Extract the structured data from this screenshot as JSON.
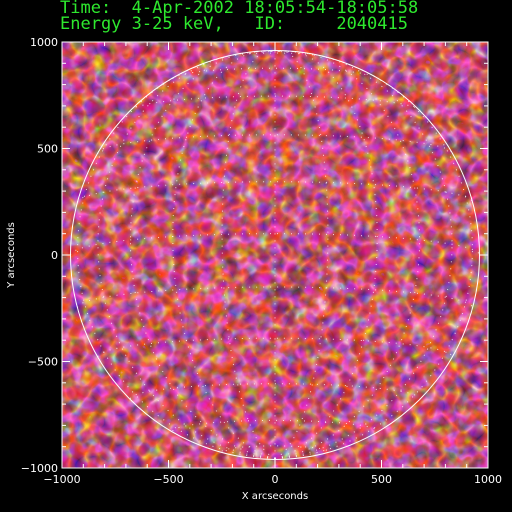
{
  "header": {
    "time_line": "Time:  4-Apr-2002 18:05:54-18:05:58",
    "energy_line": "Energy 3-25 keV,   ID:     2040415"
  },
  "plot": {
    "xlabel": "X arcseconds",
    "ylabel": "Y arcseconds",
    "xlim": [
      -1000,
      1000
    ],
    "ylim": [
      -1000,
      1000
    ],
    "xticks": [
      -1000,
      -500,
      0,
      500,
      1000
    ],
    "yticks": [
      -1000,
      -500,
      0,
      500,
      1000
    ],
    "x_tick_labels": [
      "−1000",
      "−500",
      "0",
      "500",
      "1000"
    ],
    "y_tick_labels": [
      "−1000",
      "−500",
      "0",
      "500",
      "1000"
    ],
    "solar_radius_arcsec": 960,
    "colors": {
      "background": "#000000",
      "header_text": "#2ee82e",
      "limb": "#ffffff",
      "colormap": [
        "#000000",
        "#3a0a5c",
        "#6a1aa0",
        "#c81e1e",
        "#ff5a00",
        "#ffd000",
        "#ffffcc"
      ]
    }
  }
}
